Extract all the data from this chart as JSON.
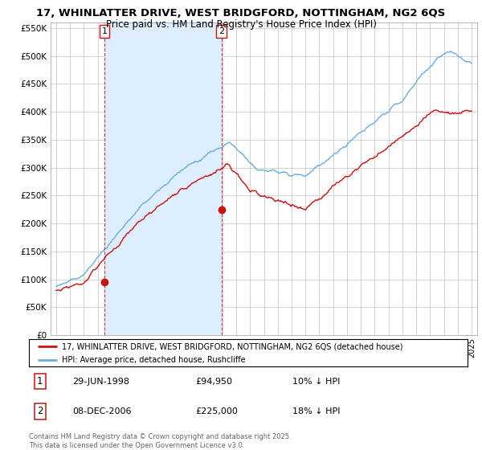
{
  "title": "17, WHINLATTER DRIVE, WEST BRIDGFORD, NOTTINGHAM, NG2 6QS",
  "subtitle": "Price paid vs. HM Land Registry's House Price Index (HPI)",
  "legend_line1": "17, WHINLATTER DRIVE, WEST BRIDGFORD, NOTTINGHAM, NG2 6QS (detached house)",
  "legend_line2": "HPI: Average price, detached house, Rushcliffe",
  "footnote": "Contains HM Land Registry data © Crown copyright and database right 2025.\nThis data is licensed under the Open Government Licence v3.0.",
  "purchase1_date": "29-JUN-1998",
  "purchase1_price": 94950,
  "purchase1_note": "10% ↓ HPI",
  "purchase2_date": "08-DEC-2006",
  "purchase2_price": 225000,
  "purchase2_note": "18% ↓ HPI",
  "purchase1_x": 1998.49,
  "purchase2_x": 2006.93,
  "hpi_color": "#6aade0",
  "price_color": "#cc1111",
  "shade_color": "#ddeeff",
  "background_color": "#ffffff",
  "grid_color": "#cccccc",
  "ylim": [
    0,
    560000
  ],
  "xlim_start": 1994.6,
  "xlim_end": 2025.4,
  "yticks": [
    0,
    50000,
    100000,
    150000,
    200000,
    250000,
    300000,
    350000,
    400000,
    450000,
    500000,
    550000
  ],
  "ytick_labels": [
    "£0",
    "£50K",
    "£100K",
    "£150K",
    "£200K",
    "£250K",
    "£300K",
    "£350K",
    "£400K",
    "£450K",
    "£500K",
    "£550K"
  ]
}
